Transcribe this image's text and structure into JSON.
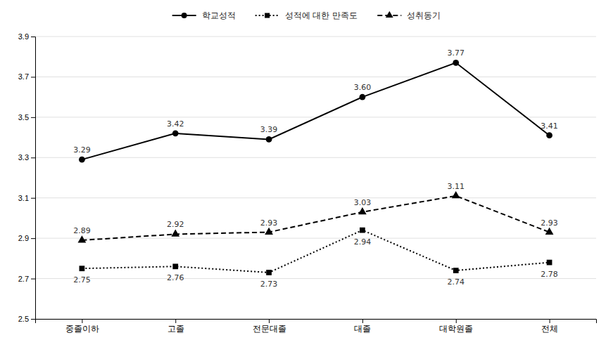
{
  "chart_data": {
    "type": "line",
    "categories": [
      "중졸이하",
      "고졸",
      "전문대졸",
      "대졸",
      "대학원졸",
      "전체"
    ],
    "series": [
      {
        "name": "학교성적",
        "color": "#000000",
        "line_style": "solid",
        "marker": "circle",
        "values": [
          3.29,
          3.42,
          3.39,
          3.6,
          3.77,
          3.41
        ],
        "value_labels": [
          "3.29",
          "3.42",
          "3.39",
          "3.60",
          "3.77",
          "3.41"
        ]
      },
      {
        "name": "성적에 대한 만족도",
        "color": "#000000",
        "line_style": "dotted",
        "marker": "square",
        "values": [
          2.75,
          2.76,
          2.73,
          2.94,
          2.74,
          2.78
        ],
        "value_labels": [
          "2.75",
          "2.76",
          "2.73",
          "2.94",
          "2.74",
          "2.78"
        ]
      },
      {
        "name": "성취동기",
        "color": "#000000",
        "line_style": "dashed",
        "marker": "triangle",
        "values": [
          2.89,
          2.92,
          2.93,
          3.03,
          3.11,
          2.93
        ],
        "value_labels": [
          "2.89",
          "2.92",
          "2.93",
          "3.03",
          "3.11",
          "2.93"
        ]
      }
    ],
    "ylim": [
      2.5,
      3.9
    ],
    "yticks": [
      2.5,
      2.7,
      2.9,
      3.1,
      3.3,
      3.5,
      3.7,
      3.9
    ],
    "grid": true,
    "legend": "top",
    "data_labels": true
  }
}
